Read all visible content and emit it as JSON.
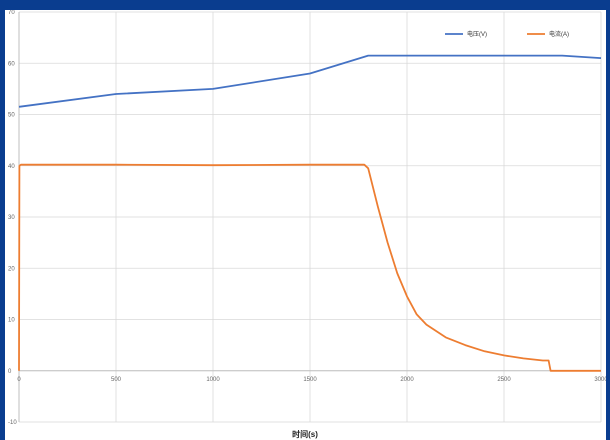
{
  "chart_data": {
    "type": "line",
    "title": "",
    "xlabel": "时间(s)",
    "ylabel": "",
    "xlim": [
      0,
      3000
    ],
    "ylim": [
      -10,
      70
    ],
    "x_ticks": [
      "0",
      "500",
      "1000",
      "1500",
      "2000",
      "2500",
      "3000"
    ],
    "y_ticks": [
      "-10",
      "0",
      "10",
      "20",
      "30",
      "40",
      "50",
      "60",
      "70"
    ],
    "grid": true,
    "legend": "top-right",
    "series": [
      {
        "name": "电压(V)",
        "color": "#4472c4",
        "x": [
          0,
          500,
          1000,
          1500,
          1800,
          2000,
          2500,
          2800,
          3000
        ],
        "y": [
          51.5,
          54,
          55,
          58,
          61.5,
          61.5,
          61.5,
          61.5,
          61
        ]
      },
      {
        "name": "电流(A)",
        "color": "#ed7d31",
        "x": [
          0,
          2,
          10,
          500,
          1000,
          1500,
          1780,
          1800,
          1850,
          1900,
          1950,
          2000,
          2050,
          2100,
          2200,
          2300,
          2400,
          2500,
          2600,
          2700,
          2730,
          2740,
          3000
        ],
        "y": [
          0,
          40,
          40.2,
          40.2,
          40.1,
          40.2,
          40.2,
          39.5,
          32,
          25,
          19,
          14.5,
          11,
          9,
          6.5,
          5,
          3.8,
          3,
          2.4,
          2,
          2,
          0,
          0
        ]
      }
    ]
  }
}
